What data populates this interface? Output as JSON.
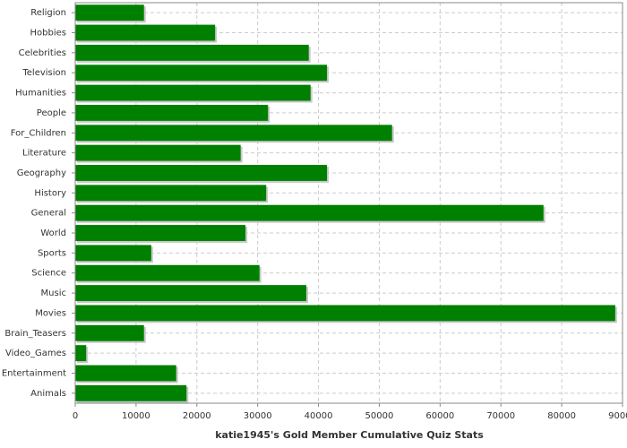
{
  "chart_data": {
    "type": "hbar",
    "x_label": "katie1945's Gold Member Cumulative Quiz Stats",
    "categories": [
      "Religion",
      "Hobbies",
      "Celebrities",
      "Television",
      "Humanities",
      "People",
      "For_Children",
      "Literature",
      "Geography",
      "History",
      "General",
      "World",
      "Sports",
      "Science",
      "Music",
      "Movies",
      "Brain_Teasers",
      "Video_Games",
      "Entertainment",
      "Animals"
    ],
    "values": [
      11300,
      23000,
      38400,
      41400,
      38700,
      31700,
      52100,
      27200,
      41400,
      31400,
      77000,
      28000,
      12500,
      30300,
      38000,
      88800,
      11300,
      1800,
      16600,
      18300
    ],
    "color": "#008000",
    "xlim": [
      0,
      90000
    ],
    "xticks": [
      0,
      10000,
      20000,
      30000,
      40000,
      50000,
      60000,
      70000,
      80000,
      90000
    ],
    "grid": true
  }
}
